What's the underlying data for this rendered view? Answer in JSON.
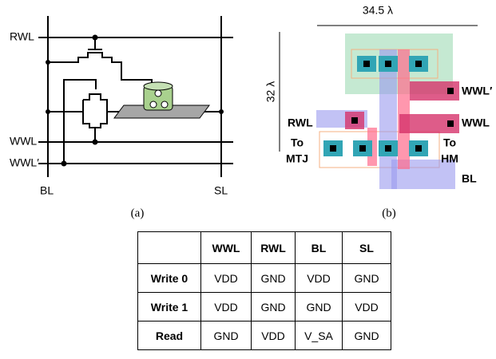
{
  "schematic": {
    "labels": {
      "rwl": "RWL",
      "wwl": "WWL",
      "wwl_prime": "WWL′",
      "bl": "BL",
      "sl": "SL"
    },
    "caption": "(a)"
  },
  "layout": {
    "width": "34.5 λ",
    "height": "32 λ",
    "labels": {
      "rwl": "RWL",
      "to_mtj_1": "To",
      "to_mtj_2": "MTJ",
      "wwl_prime": "WWL′",
      "wwl": "WWL",
      "to_hm_1": "To",
      "to_hm_2": "HM",
      "bl": "BL"
    },
    "caption": "(b)"
  },
  "table": {
    "columns": [
      "WWL",
      "RWL",
      "BL",
      "SL"
    ],
    "rows": [
      {
        "op": "Write 0",
        "cells": [
          "VDD",
          "GND",
          "VDD",
          "GND"
        ]
      },
      {
        "op": "Write 1",
        "cells": [
          "VDD",
          "GND",
          "GND",
          "VDD"
        ]
      },
      {
        "op": "Read",
        "cells": [
          "GND",
          "VDD",
          "V_SA",
          "GND"
        ]
      }
    ]
  }
}
